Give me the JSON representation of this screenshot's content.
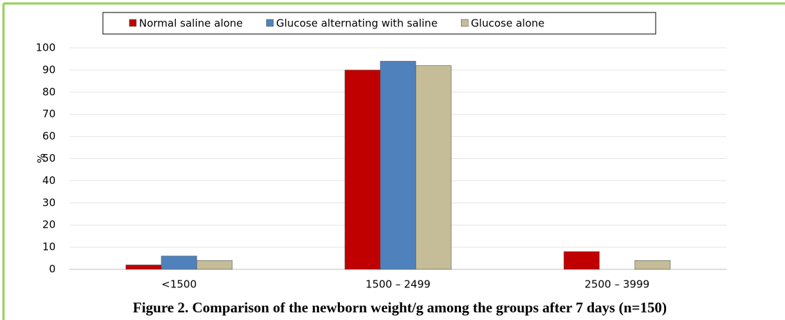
{
  "chart_data": {
    "type": "bar",
    "caption": "Figure 2. Comparison of the newborn weight/g among the groups after 7 days (n=150)",
    "y_label": "%",
    "categories": [
      "<1500",
      "1500 – 2499",
      "2500 – 3999"
    ],
    "series": [
      {
        "name": "Normal saline alone",
        "color": "#c00000",
        "values": [
          2,
          90,
          8
        ]
      },
      {
        "name": "Glucose alternating with saline",
        "color": "#4f81bd",
        "values": [
          6,
          94,
          0
        ]
      },
      {
        "name": "Glucose alone",
        "color": "#c4bd97",
        "values": [
          4,
          92,
          4
        ]
      }
    ],
    "ylim": [
      0,
      100
    ],
    "yticks": [
      0,
      10,
      20,
      30,
      40,
      50,
      60,
      70,
      80,
      90,
      100
    ],
    "grid": true,
    "legend": "top"
  }
}
